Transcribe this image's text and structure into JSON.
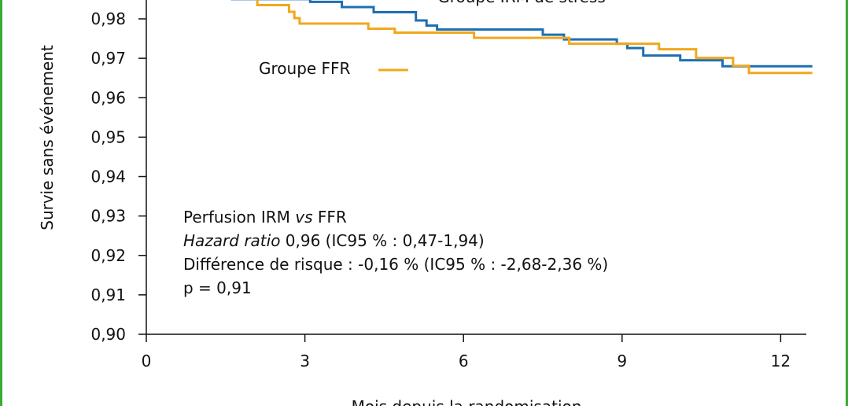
{
  "chart_data": {
    "type": "line",
    "step": true,
    "ylabel": "Survie sans événement",
    "xlabel": "Mois depuis la randomisation",
    "xlim": [
      0,
      12.5
    ],
    "ylim": [
      0.9,
      0.985
    ],
    "x_ticks": [
      {
        "value": 0,
        "label": "0"
      },
      {
        "value": 3,
        "label": "3"
      },
      {
        "value": 6,
        "label": "6"
      },
      {
        "value": 9,
        "label": "9"
      },
      {
        "value": 12,
        "label": "12"
      }
    ],
    "y_ticks": [
      {
        "value": 0.9,
        "label": "0,90"
      },
      {
        "value": 0.91,
        "label": "0,91"
      },
      {
        "value": 0.92,
        "label": "0,92"
      },
      {
        "value": 0.93,
        "label": "0,93"
      },
      {
        "value": 0.94,
        "label": "0,94"
      },
      {
        "value": 0.95,
        "label": "0,95"
      },
      {
        "value": 0.96,
        "label": "0,96"
      },
      {
        "value": 0.97,
        "label": "0,97"
      },
      {
        "value": 0.98,
        "label": "0,98"
      }
    ],
    "grid": false,
    "series": [
      {
        "name": "Groupe IRM de stress",
        "color": "#1f6fb2",
        "label_position": "top-center",
        "points": [
          [
            1.6,
            0.985
          ],
          [
            3.1,
            0.985
          ],
          [
            3.1,
            0.9843
          ],
          [
            3.7,
            0.9843
          ],
          [
            3.7,
            0.983
          ],
          [
            4.3,
            0.983
          ],
          [
            4.3,
            0.9817
          ],
          [
            5.1,
            0.9817
          ],
          [
            5.1,
            0.9796
          ],
          [
            5.3,
            0.9796
          ],
          [
            5.3,
            0.9783
          ],
          [
            5.5,
            0.9783
          ],
          [
            5.5,
            0.9773
          ],
          [
            7.5,
            0.9773
          ],
          [
            7.5,
            0.976
          ],
          [
            7.9,
            0.976
          ],
          [
            7.9,
            0.9748
          ],
          [
            8.9,
            0.9748
          ],
          [
            8.9,
            0.9737
          ],
          [
            9.1,
            0.9737
          ],
          [
            9.1,
            0.9726
          ],
          [
            9.4,
            0.9726
          ],
          [
            9.4,
            0.9707
          ],
          [
            10.1,
            0.9707
          ],
          [
            10.1,
            0.9695
          ],
          [
            10.9,
            0.9695
          ],
          [
            10.9,
            0.968
          ],
          [
            12.6,
            0.968
          ]
        ]
      },
      {
        "name": "Groupe FFR",
        "color": "#f0a81c",
        "label_position": "upper-left",
        "points": [
          [
            2.1,
            0.985
          ],
          [
            2.1,
            0.9835
          ],
          [
            2.7,
            0.9835
          ],
          [
            2.7,
            0.9818
          ],
          [
            2.8,
            0.9818
          ],
          [
            2.8,
            0.9802
          ],
          [
            2.9,
            0.9802
          ],
          [
            2.9,
            0.9788
          ],
          [
            4.2,
            0.9788
          ],
          [
            4.2,
            0.9775
          ],
          [
            4.7,
            0.9775
          ],
          [
            4.7,
            0.9765
          ],
          [
            6.2,
            0.9765
          ],
          [
            6.2,
            0.9752
          ],
          [
            8.0,
            0.9752
          ],
          [
            8.0,
            0.9737
          ],
          [
            9.7,
            0.9737
          ],
          [
            9.7,
            0.9723
          ],
          [
            10.4,
            0.9723
          ],
          [
            10.4,
            0.9701
          ],
          [
            11.1,
            0.9701
          ],
          [
            11.1,
            0.9681
          ],
          [
            11.4,
            0.9681
          ],
          [
            11.4,
            0.9663
          ],
          [
            12.6,
            0.9663
          ]
        ]
      }
    ],
    "annotation": [
      {
        "text": "Perfusion IRM ",
        "italic_part": "vs",
        "tail": " FFR"
      },
      {
        "italic_part": "Hazard ratio",
        "tail": " 0,96 (IC95 % : 0,47-1,94)"
      },
      {
        "text": "Différence de risque : -0,16 % (IC95 % : -2,68-2,36 %)"
      },
      {
        "text": "p = 0,91"
      }
    ]
  }
}
